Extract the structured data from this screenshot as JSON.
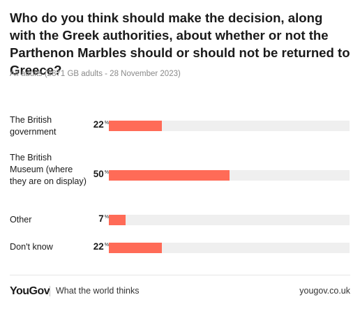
{
  "chart_data": {
    "type": "bar",
    "title": "Who do you think should make the decision, along with the Greek authorities, about whether or not the Parthenon Marbles should or should not be returned to Greece?",
    "subtitle": "All adults (2871 GB adults - 28 November 2023)",
    "categories": [
      "The British government",
      "The British Museum (where they are on display)",
      "Other",
      "Don't know"
    ],
    "values": [
      22,
      50,
      7,
      22
    ],
    "unit": "%",
    "xlim": [
      0,
      100
    ],
    "color": "#ff6b57",
    "track_color": "#efefef"
  },
  "footer": {
    "logo": "YouGov",
    "tagline": "What the world thinks",
    "site": "yougov.co.uk"
  }
}
